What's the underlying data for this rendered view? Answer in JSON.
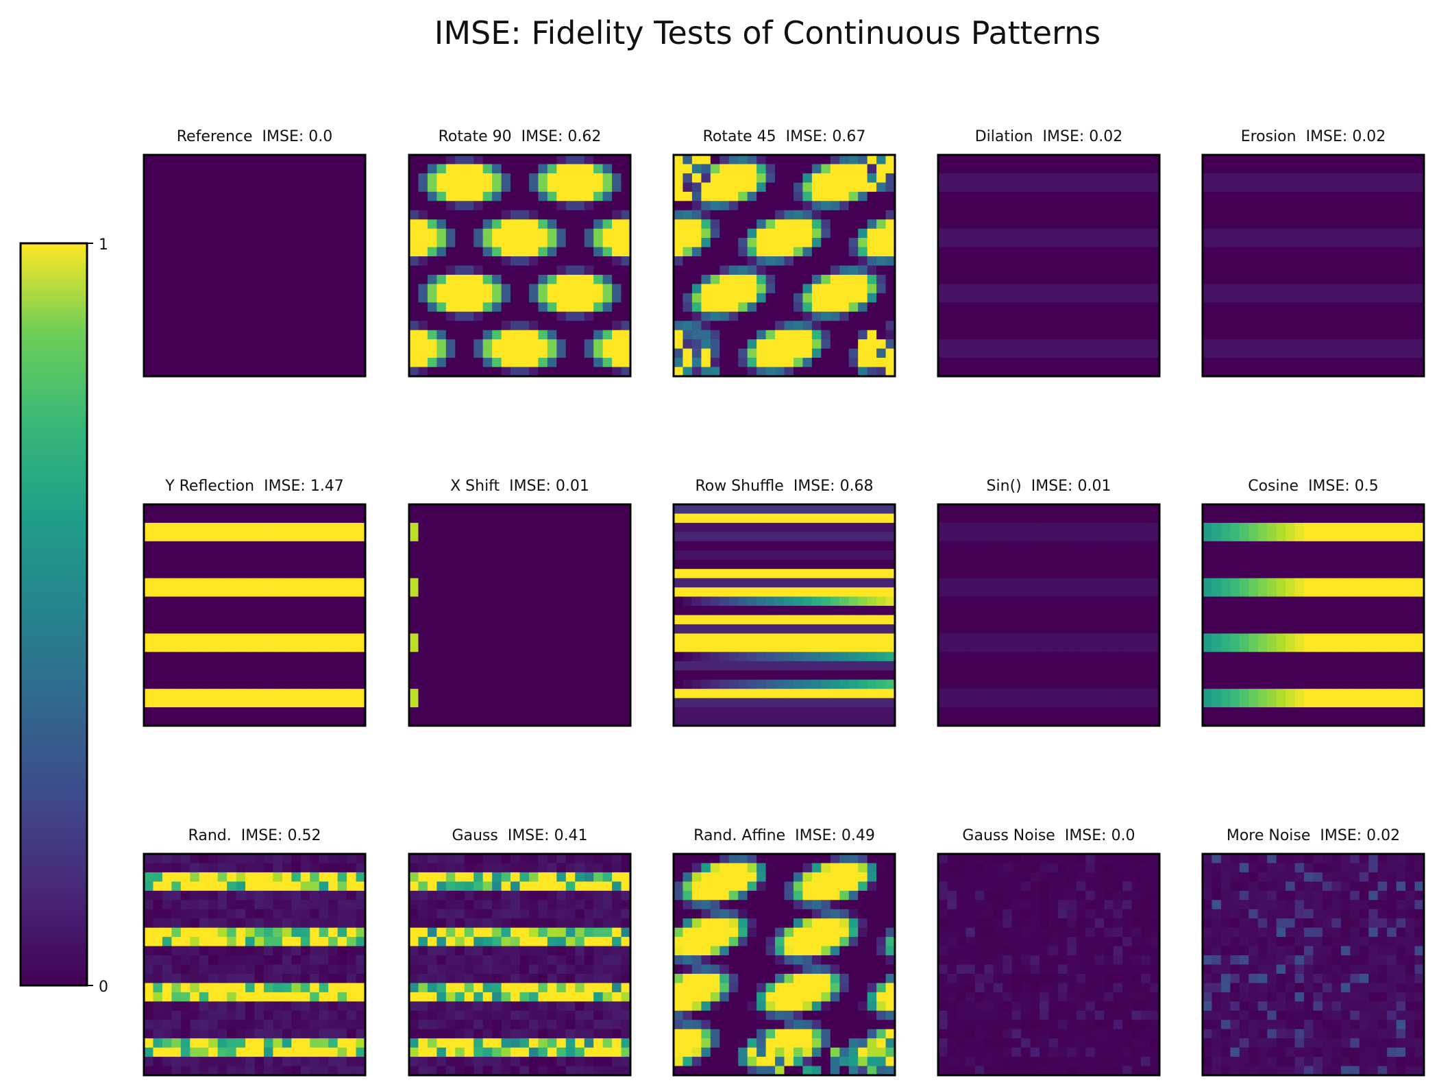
{
  "chart_data": {
    "type": "heatmap",
    "title": "IMSE: Fidelity Tests of Continuous Patterns",
    "colormap": "viridis",
    "colorbar": {
      "min_label": "0",
      "max_label": "1",
      "range": [
        0,
        1
      ]
    },
    "grid_resolution": 24,
    "panels": [
      {
        "method": "Reference",
        "imse": "0.0",
        "pattern": "uniform",
        "level": 0.0
      },
      {
        "method": "Rotate 90",
        "imse": "0.62",
        "pattern": "ellipses",
        "rows": 4,
        "offset_rows": true,
        "tilt_deg": 0
      },
      {
        "method": "Rotate 45",
        "imse": "0.67",
        "pattern": "ellipses",
        "rows": 4,
        "offset_rows": true,
        "tilt_deg": -15,
        "noisy_corners": true
      },
      {
        "method": "Dilation",
        "imse": "0.02",
        "pattern": "faint_stripes",
        "stripes": 4,
        "level": 0.05
      },
      {
        "method": "Erosion",
        "imse": "0.02",
        "pattern": "faint_stripes",
        "stripes": 4,
        "level": 0.05
      },
      {
        "method": "Y Reflection",
        "imse": "1.47",
        "pattern": "stripes",
        "stripes": 4
      },
      {
        "method": "X Shift",
        "imse": "0.01",
        "pattern": "edge_stripes",
        "stripes": 4
      },
      {
        "method": "Row Shuffle",
        "imse": "0.68",
        "pattern": "shuffled_rows"
      },
      {
        "method": "Sin()",
        "imse": "0.01",
        "pattern": "faint_stripes",
        "stripes": 4,
        "level": 0.04
      },
      {
        "method": "Cosine",
        "imse": "0.5",
        "pattern": "gradient_stripes",
        "stripes": 4
      },
      {
        "method": "Rand.",
        "imse": "0.52",
        "pattern": "random_stripes",
        "stripes": 4,
        "density": 0.6
      },
      {
        "method": "Gauss",
        "imse": "0.41",
        "pattern": "random_stripes",
        "stripes": 4,
        "density": 0.5
      },
      {
        "method": "Rand. Affine",
        "imse": "0.49",
        "pattern": "ellipses_affine",
        "rows": 4,
        "tilt_deg": -12
      },
      {
        "method": "Gauss Noise",
        "imse": "0.0",
        "pattern": "noise",
        "amount": 0.04
      },
      {
        "method": "More Noise",
        "imse": "0.02",
        "pattern": "noise",
        "amount": 0.12
      }
    ]
  }
}
